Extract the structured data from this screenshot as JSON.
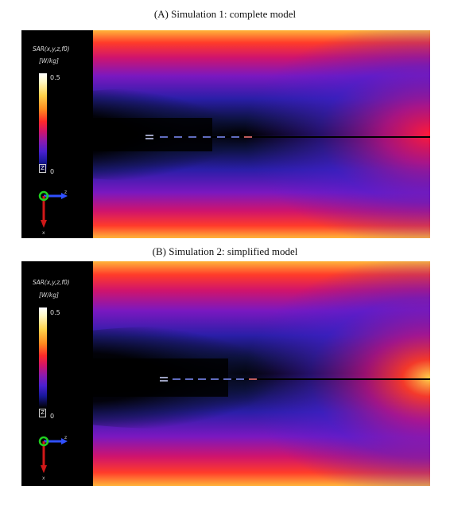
{
  "panels": [
    {
      "caption": "(A) Simulation 1: complete model",
      "legend_title": "SAR(x,y,z,f0)",
      "legend_unit": "[W/kg]",
      "colorbar_max": "0.5",
      "colorbar_min": "0",
      "zoom_box": "Z",
      "axis_z": "z",
      "axis_x": "x"
    },
    {
      "caption": "(B) Simulation 2: simplified model",
      "legend_title": "SAR(x,y,z,f0)",
      "legend_unit": "[W/kg]",
      "colorbar_max": "0.5",
      "colorbar_min": "0",
      "zoom_box": "Z",
      "axis_z": "z",
      "axis_x": "x"
    }
  ],
  "colors": {
    "background": "#000000",
    "colormap": [
      "#000000",
      "#18189a",
      "#4a20d0",
      "#8a1ab0",
      "#d0146c",
      "#ff2a2a",
      "#ff8a1e",
      "#ffd24a",
      "#ffffff"
    ]
  }
}
